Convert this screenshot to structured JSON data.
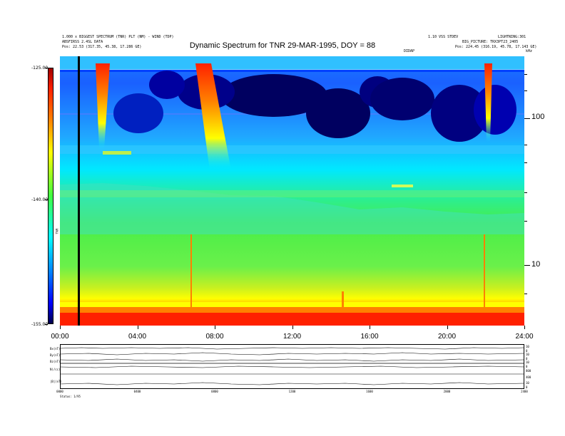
{
  "header": {
    "left_line1": "1.000 x BIGGEST SPECTRUM (TNR) PLT (NM) - WIND (TDP)",
    "left_line2": "ABSFIRSS 2.4SL DATA",
    "left_line3": "Pos:   22.53 (317.35, 45.38, 17.286 GE)",
    "right_line1": "1.10 VSS STDEV",
    "right_line2": "BIG_PICTURE: TRX3PT23_2405",
    "right_line3": "Pos:   224.45 (316.19, 45.78, 17.143 GE)",
    "far_right_line1": "LIGHTNING:301",
    "center_small": "DIDAP",
    "right_axis_unit": "kHz"
  },
  "chart_data": {
    "type": "heatmap",
    "title": "Dynamic Spectrum for TNR 29-MAR-1995, DOY = 88",
    "xlabel": "",
    "ylabel": "",
    "x_ticks": [
      "00:00",
      "04:00",
      "08:00",
      "12:00",
      "16:00",
      "20:00",
      "24:00"
    ],
    "x_range_hours": [
      0,
      24
    ],
    "y_scale": "log",
    "y_ticks": [
      "100",
      "10"
    ],
    "y_tick_values": [
      100,
      10
    ],
    "colorbar": {
      "ticks": [
        "-125.00",
        "-140.00",
        "-155.00"
      ],
      "tick_values": [
        -125,
        -140,
        -155
      ],
      "label": "TNR",
      "range": [
        -155,
        -125
      ]
    },
    "features": [
      {
        "hour": 1.0,
        "kind": "data gap (black)"
      },
      {
        "hour": 2.0,
        "kind": "type III burst"
      },
      {
        "hour": 7.0,
        "kind": "type III burst"
      },
      {
        "hour": 22.0,
        "kind": "type III burst"
      }
    ]
  },
  "timeseries": {
    "left_labels": [
      "Bx(nT)",
      "By(nT)",
      "Bz(nT)",
      "N(/cc)",
      "|B|(nT)"
    ],
    "right_labels": [
      "10",
      "0",
      "10",
      "0",
      "10",
      "0",
      "800",
      "400",
      "10",
      "0"
    ],
    "x_ticks": [
      "0000",
      "0400",
      "0800",
      "1200",
      "1600",
      "2000",
      "2400"
    ],
    "footer_left": "Status:  1/95"
  }
}
